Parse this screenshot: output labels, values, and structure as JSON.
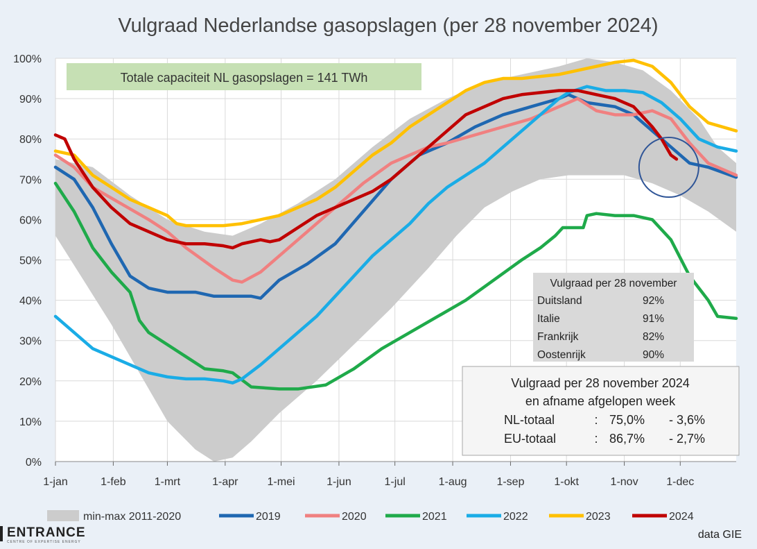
{
  "chart_data": {
    "type": "line",
    "title": "Vulgraad Nederlandse gasopslagen (per 28 november 2024)",
    "capacity_note": "Totale capaciteit NL gasopslagen = 141 TWh",
    "xlabel": "",
    "ylabel": "",
    "x_unit": "day of year",
    "xlim": [
      0,
      365
    ],
    "ylim": [
      0,
      100
    ],
    "grid": true,
    "legend_position": "bottom",
    "x_ticks": [
      {
        "day": 0,
        "label": "1-jan"
      },
      {
        "day": 31,
        "label": "1-feb"
      },
      {
        "day": 60,
        "label": "1-mrt"
      },
      {
        "day": 91,
        "label": "1-apr"
      },
      {
        "day": 121,
        "label": "1-mei"
      },
      {
        "day": 152,
        "label": "1-jun"
      },
      {
        "day": 182,
        "label": "1-jul"
      },
      {
        "day": 213,
        "label": "1-aug"
      },
      {
        "day": 244,
        "label": "1-sep"
      },
      {
        "day": 274,
        "label": "1-okt"
      },
      {
        "day": 305,
        "label": "1-nov"
      },
      {
        "day": 335,
        "label": "1-dec"
      }
    ],
    "y_ticks": [
      "0%",
      "10%",
      "20%",
      "30%",
      "40%",
      "50%",
      "60%",
      "70%",
      "80%",
      "90%",
      "100%"
    ],
    "band": {
      "name": "min-max 2011-2020",
      "color": "#cccccc",
      "upper": [
        [
          0,
          75
        ],
        [
          20,
          73
        ],
        [
          40,
          66
        ],
        [
          60,
          60
        ],
        [
          80,
          57
        ],
        [
          95,
          56
        ],
        [
          110,
          59
        ],
        [
          130,
          64
        ],
        [
          150,
          70
        ],
        [
          170,
          78
        ],
        [
          190,
          85
        ],
        [
          210,
          90
        ],
        [
          230,
          94
        ],
        [
          250,
          96
        ],
        [
          270,
          98
        ],
        [
          285,
          100
        ],
        [
          300,
          99
        ],
        [
          315,
          97
        ],
        [
          330,
          92
        ],
        [
          345,
          85
        ],
        [
          355,
          78
        ],
        [
          365,
          74
        ]
      ],
      "lower": [
        [
          0,
          56
        ],
        [
          15,
          45
        ],
        [
          30,
          34
        ],
        [
          45,
          22
        ],
        [
          60,
          10
        ],
        [
          75,
          3
        ],
        [
          85,
          0
        ],
        [
          95,
          1
        ],
        [
          105,
          5
        ],
        [
          120,
          12
        ],
        [
          140,
          20
        ],
        [
          160,
          29
        ],
        [
          180,
          38
        ],
        [
          200,
          48
        ],
        [
          215,
          56
        ],
        [
          230,
          63
        ],
        [
          245,
          67
        ],
        [
          260,
          70
        ],
        [
          275,
          71
        ],
        [
          290,
          71
        ],
        [
          305,
          71
        ],
        [
          320,
          69
        ],
        [
          335,
          66
        ],
        [
          350,
          62
        ],
        [
          365,
          57
        ]
      ]
    },
    "series": [
      {
        "name": "2019",
        "color": "#1f67b1",
        "points": [
          [
            0,
            73
          ],
          [
            10,
            70
          ],
          [
            20,
            63
          ],
          [
            30,
            54
          ],
          [
            40,
            46
          ],
          [
            50,
            43
          ],
          [
            60,
            42
          ],
          [
            75,
            42
          ],
          [
            85,
            41
          ],
          [
            95,
            41
          ],
          [
            105,
            41
          ],
          [
            110,
            40.5
          ],
          [
            120,
            45
          ],
          [
            135,
            49
          ],
          [
            150,
            54
          ],
          [
            165,
            62
          ],
          [
            180,
            70
          ],
          [
            195,
            76
          ],
          [
            210,
            79
          ],
          [
            225,
            83
          ],
          [
            240,
            86
          ],
          [
            255,
            88
          ],
          [
            270,
            90
          ],
          [
            275,
            91
          ],
          [
            285,
            89
          ],
          [
            300,
            88
          ],
          [
            310,
            86
          ],
          [
            320,
            82
          ],
          [
            330,
            78
          ],
          [
            340,
            74
          ],
          [
            350,
            73
          ],
          [
            365,
            70.5
          ]
        ]
      },
      {
        "name": "2020",
        "color": "#f08080",
        "points": [
          [
            0,
            76
          ],
          [
            10,
            73
          ],
          [
            20,
            68
          ],
          [
            35,
            64
          ],
          [
            50,
            60
          ],
          [
            60,
            57
          ],
          [
            70,
            53
          ],
          [
            85,
            48
          ],
          [
            95,
            45
          ],
          [
            100,
            44.5
          ],
          [
            110,
            47
          ],
          [
            120,
            51
          ],
          [
            135,
            57
          ],
          [
            150,
            63
          ],
          [
            165,
            69
          ],
          [
            180,
            74
          ],
          [
            190,
            76
          ],
          [
            200,
            78
          ],
          [
            210,
            79
          ],
          [
            225,
            81
          ],
          [
            240,
            83
          ],
          [
            255,
            85
          ],
          [
            270,
            88
          ],
          [
            280,
            90
          ],
          [
            290,
            87
          ],
          [
            300,
            86
          ],
          [
            310,
            86
          ],
          [
            320,
            87
          ],
          [
            330,
            85
          ],
          [
            340,
            79
          ],
          [
            350,
            74
          ],
          [
            365,
            71
          ]
        ]
      },
      {
        "name": "2021",
        "color": "#1faa4a",
        "points": [
          [
            0,
            69
          ],
          [
            10,
            62
          ],
          [
            20,
            53
          ],
          [
            30,
            47
          ],
          [
            40,
            42
          ],
          [
            45,
            35
          ],
          [
            50,
            32
          ],
          [
            60,
            29
          ],
          [
            70,
            26
          ],
          [
            80,
            23
          ],
          [
            90,
            22.5
          ],
          [
            95,
            22
          ],
          [
            105,
            18.5
          ],
          [
            120,
            18
          ],
          [
            130,
            18
          ],
          [
            145,
            19
          ],
          [
            160,
            23
          ],
          [
            175,
            28
          ],
          [
            190,
            32
          ],
          [
            205,
            36
          ],
          [
            220,
            40
          ],
          [
            235,
            45
          ],
          [
            250,
            50
          ],
          [
            260,
            53
          ],
          [
            268,
            56
          ],
          [
            272,
            58
          ],
          [
            283,
            58
          ],
          [
            285,
            61
          ],
          [
            290,
            61.5
          ],
          [
            300,
            61
          ],
          [
            310,
            61
          ],
          [
            320,
            60
          ],
          [
            330,
            55
          ],
          [
            340,
            46
          ],
          [
            350,
            40
          ],
          [
            355,
            36
          ],
          [
            365,
            35.5
          ]
        ]
      },
      {
        "name": "2022",
        "color": "#1aace6",
        "points": [
          [
            0,
            36
          ],
          [
            10,
            32
          ],
          [
            20,
            28
          ],
          [
            30,
            26
          ],
          [
            40,
            24
          ],
          [
            50,
            22
          ],
          [
            60,
            21
          ],
          [
            70,
            20.5
          ],
          [
            80,
            20.5
          ],
          [
            90,
            20
          ],
          [
            95,
            19.5
          ],
          [
            100,
            20.5
          ],
          [
            110,
            24
          ],
          [
            120,
            28
          ],
          [
            130,
            32
          ],
          [
            140,
            36
          ],
          [
            150,
            41
          ],
          [
            160,
            46
          ],
          [
            170,
            51
          ],
          [
            180,
            55
          ],
          [
            190,
            59
          ],
          [
            200,
            64
          ],
          [
            210,
            68
          ],
          [
            220,
            71
          ],
          [
            230,
            74
          ],
          [
            240,
            78
          ],
          [
            250,
            82
          ],
          [
            260,
            86
          ],
          [
            270,
            90
          ],
          [
            275,
            91.5
          ],
          [
            285,
            93
          ],
          [
            295,
            92
          ],
          [
            305,
            92
          ],
          [
            315,
            91.5
          ],
          [
            325,
            89
          ],
          [
            335,
            85
          ],
          [
            345,
            80
          ],
          [
            355,
            78
          ],
          [
            365,
            77
          ]
        ]
      },
      {
        "name": "2023",
        "color": "#ffc000",
        "points": [
          [
            0,
            77
          ],
          [
            10,
            76
          ],
          [
            20,
            71
          ],
          [
            30,
            68
          ],
          [
            40,
            65
          ],
          [
            50,
            63
          ],
          [
            60,
            61
          ],
          [
            65,
            59
          ],
          [
            70,
            58.5
          ],
          [
            80,
            58.5
          ],
          [
            90,
            58.5
          ],
          [
            100,
            59
          ],
          [
            110,
            60
          ],
          [
            120,
            61
          ],
          [
            130,
            63
          ],
          [
            140,
            65
          ],
          [
            150,
            68
          ],
          [
            160,
            72
          ],
          [
            170,
            76
          ],
          [
            180,
            79
          ],
          [
            190,
            83
          ],
          [
            200,
            86
          ],
          [
            210,
            89
          ],
          [
            220,
            92
          ],
          [
            230,
            94
          ],
          [
            240,
            95
          ],
          [
            250,
            95
          ],
          [
            260,
            95.5
          ],
          [
            270,
            96
          ],
          [
            280,
            97
          ],
          [
            290,
            98
          ],
          [
            300,
            99
          ],
          [
            310,
            99.5
          ],
          [
            320,
            98
          ],
          [
            330,
            94
          ],
          [
            340,
            88
          ],
          [
            350,
            84
          ],
          [
            365,
            82
          ]
        ]
      },
      {
        "name": "2024",
        "color": "#c00000",
        "points": [
          [
            0,
            81
          ],
          [
            5,
            80
          ],
          [
            10,
            75
          ],
          [
            20,
            68
          ],
          [
            30,
            63
          ],
          [
            40,
            59
          ],
          [
            50,
            57
          ],
          [
            60,
            55
          ],
          [
            70,
            54
          ],
          [
            80,
            54
          ],
          [
            90,
            53.5
          ],
          [
            95,
            53
          ],
          [
            100,
            54
          ],
          [
            110,
            55
          ],
          [
            115,
            54.5
          ],
          [
            120,
            55
          ],
          [
            130,
            58
          ],
          [
            140,
            61
          ],
          [
            150,
            63
          ],
          [
            160,
            65
          ],
          [
            170,
            67
          ],
          [
            180,
            70
          ],
          [
            190,
            74
          ],
          [
            200,
            78
          ],
          [
            210,
            82
          ],
          [
            220,
            86
          ],
          [
            230,
            88
          ],
          [
            240,
            90
          ],
          [
            250,
            91
          ],
          [
            260,
            91.5
          ],
          [
            270,
            92
          ],
          [
            280,
            92
          ],
          [
            290,
            91
          ],
          [
            300,
            90
          ],
          [
            310,
            88
          ],
          [
            320,
            83
          ],
          [
            325,
            80
          ],
          [
            330,
            76
          ],
          [
            333,
            75
          ]
        ]
      }
    ],
    "country_table": {
      "title": "Vulgraad per 28 november",
      "rows": [
        {
          "country": "Duitsland",
          "value": "92%"
        },
        {
          "country": "Italie",
          "value": "91%"
        },
        {
          "country": "Frankrijk",
          "value": "82%"
        },
        {
          "country": "Oostenrijk",
          "value": "90%"
        }
      ]
    },
    "summary_box": {
      "line1": "Vulgraad per 28 november 2024",
      "line2": "en afname afgelopen week",
      "rows": [
        {
          "label": "NL-totaal",
          "sep": ":",
          "value": "75,0%",
          "change": "- 3,6%"
        },
        {
          "label": "EU-totaal",
          "sep": ":",
          "value": "86,7%",
          "change": "- 2,7%"
        }
      ]
    },
    "highlight_circle": {
      "day": 330,
      "value": 74
    }
  },
  "brand": {
    "name": "ENTRANCE",
    "sub": "CENTRE OF EXPERTISE ENERGY"
  },
  "source": "data GIE"
}
